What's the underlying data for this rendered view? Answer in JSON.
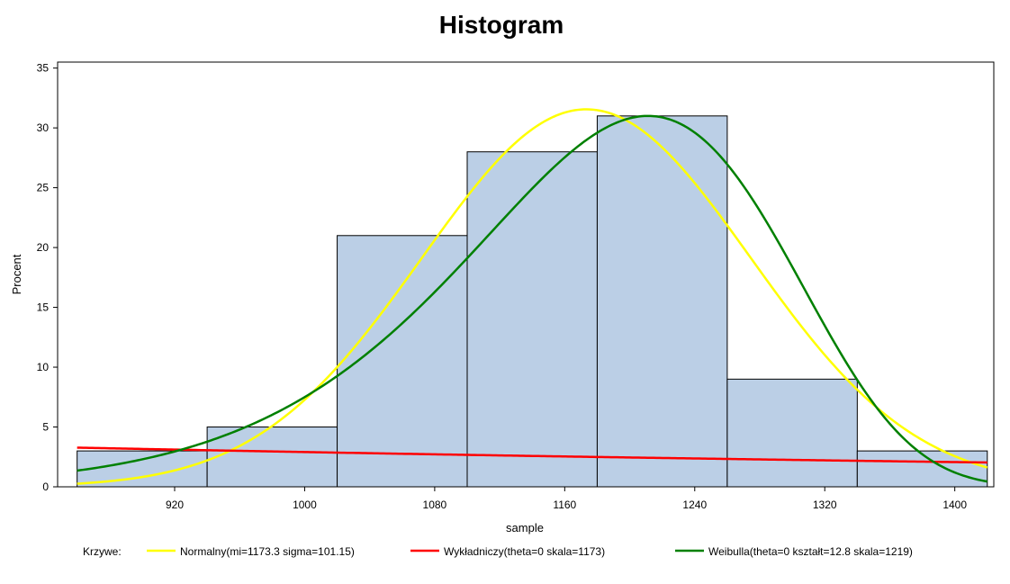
{
  "chart_data": {
    "type": "histogram",
    "title": "Histogram",
    "xlabel": "sample",
    "ylabel": "Procent",
    "bar_color": "#BBCFE6",
    "bin_edges": [
      860,
      940,
      1020,
      1100,
      1180,
      1260,
      1340,
      1420
    ],
    "values": [
      3,
      5,
      21,
      28,
      31,
      9,
      3
    ],
    "x_range": [
      848,
      1424
    ],
    "x_ticks": [
      920,
      1000,
      1080,
      1160,
      1240,
      1320,
      1400
    ],
    "ylim": [
      0,
      35.5
    ],
    "y_ticks": [
      0,
      5,
      10,
      15,
      20,
      25,
      30,
      35
    ],
    "grid": false,
    "legend_placement": "bottom",
    "legend_title": "Krzywe:",
    "series": [
      {
        "name": "Normalny(mi=1173.3 sigma=101.15)",
        "kind": "normal",
        "color": "#FFFF00",
        "mu": 1173.3,
        "sigma": 101.15
      },
      {
        "name": "Wykładniczy(theta=0 skala=1173)",
        "kind": "exponential",
        "color": "#FF0000",
        "theta": 0,
        "scale": 1173
      },
      {
        "name": "Weibulla(theta=0 kształt=12.8 skala=1219)",
        "kind": "weibull",
        "color": "#008000",
        "theta": 0,
        "shape": 12.8,
        "scale": 1219
      }
    ]
  }
}
